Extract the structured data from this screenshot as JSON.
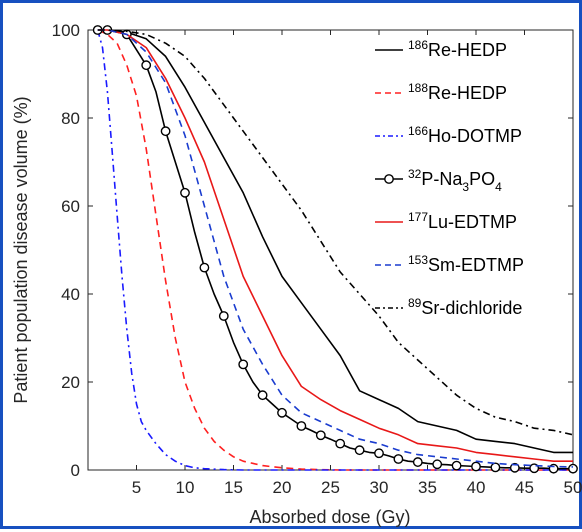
{
  "chart_data": {
    "type": "line",
    "title": "",
    "xlabel": "Absorbed dose (Gy)",
    "ylabel": "Patient population disease volume (%)",
    "xlim": [
      0,
      50
    ],
    "ylim": [
      0,
      100
    ],
    "xticks": [
      5,
      10,
      15,
      20,
      25,
      30,
      35,
      40,
      45,
      50
    ],
    "yticks": [
      0,
      20,
      40,
      60,
      80,
      100
    ],
    "grid": false,
    "legend_position": "top-right",
    "series": [
      {
        "name": "186Re-HEDP",
        "legend": {
          "sup": "186",
          "main": "Re-HEDP"
        },
        "color": "#000000",
        "dash": "solid",
        "marker": "none",
        "x": [
          1,
          2,
          4,
          6,
          8,
          10,
          12,
          14,
          16,
          18,
          20,
          22,
          24,
          26,
          28,
          30,
          32,
          34,
          36,
          38,
          40,
          42,
          44,
          46,
          48,
          50
        ],
        "y": [
          100,
          100,
          99.5,
          98,
          94,
          87,
          79,
          71,
          63,
          53,
          44,
          38,
          32,
          26,
          18,
          16,
          14,
          11,
          10,
          9,
          7,
          6.5,
          6,
          5,
          4,
          4
        ]
      },
      {
        "name": "188Re-HEDP",
        "legend": {
          "sup": "188",
          "main": "Re-HEDP"
        },
        "color": "#ff2020",
        "dash": "dashed",
        "marker": "none",
        "x": [
          1,
          2,
          3,
          4,
          5,
          6,
          7,
          8,
          9,
          10,
          11,
          12,
          13,
          14,
          15,
          16,
          18,
          20,
          22,
          24,
          26,
          50
        ],
        "y": [
          100,
          99,
          97,
          92,
          85,
          73,
          58,
          43,
          30,
          20,
          14,
          9.5,
          6.5,
          4.5,
          3,
          2,
          1,
          0.5,
          0.2,
          0.1,
          0,
          0
        ]
      },
      {
        "name": "166Ho-DOTMP",
        "legend": {
          "sup": "166",
          "main": "Ho-DOTMP"
        },
        "color": "#1a1aff",
        "dash": "dashdot",
        "marker": "none",
        "x": [
          1,
          1.5,
          2,
          2.5,
          3,
          3.5,
          4,
          4.5,
          5,
          5.5,
          6,
          7,
          8,
          9,
          10,
          11,
          12,
          14,
          16,
          20,
          50
        ],
        "y": [
          100,
          96,
          86,
          72,
          58,
          44,
          32,
          22,
          15,
          11,
          9,
          6,
          3.5,
          2,
          1,
          0.5,
          0.3,
          0.1,
          0,
          0,
          0
        ]
      },
      {
        "name": "32P-Na3PO4",
        "legend": {
          "sup": "32",
          "main": "P-Na",
          "sub": "3",
          "main2": "PO",
          "sub2": "4"
        },
        "color": "#000000",
        "dash": "solid",
        "marker": "circle",
        "x": [
          1,
          2,
          4,
          6,
          7,
          8,
          9,
          10,
          11,
          12,
          13,
          14,
          15,
          16,
          17,
          18,
          19,
          20,
          21,
          22,
          23,
          24,
          25,
          26,
          27,
          28,
          29,
          30,
          31,
          32,
          33,
          34,
          35,
          36,
          37,
          38,
          39,
          40,
          41,
          42,
          43,
          44,
          45,
          46,
          47,
          48,
          49,
          50
        ],
        "y": [
          100,
          100,
          99,
          92,
          86,
          77,
          70,
          63,
          54,
          46,
          40,
          35,
          29,
          24,
          20,
          17,
          15,
          13,
          11.5,
          10,
          9,
          7.9,
          7,
          6,
          5,
          4.5,
          4,
          3.8,
          3.2,
          2.5,
          2,
          1.8,
          1.5,
          1.3,
          1.2,
          1,
          0.9,
          0.8,
          0.7,
          0.6,
          0.5,
          0.5,
          0.4,
          0.4,
          0.4,
          0.3,
          0.3,
          0.3
        ],
        "marker_x": [
          1,
          2,
          4,
          6,
          8,
          10,
          12,
          14,
          16,
          18,
          20,
          22,
          24,
          26,
          28,
          30,
          32,
          34,
          36,
          38,
          40,
          42,
          44,
          46,
          48,
          50
        ]
      },
      {
        "name": "177Lu-EDTMP",
        "legend": {
          "sup": "177",
          "main": "Lu-EDTMP"
        },
        "color": "#e81818",
        "dash": "solid",
        "marker": "none",
        "x": [
          1,
          2,
          4,
          6,
          8,
          10,
          12,
          14,
          16,
          18,
          20,
          22,
          24,
          26,
          28,
          30,
          32,
          34,
          36,
          38,
          40,
          42,
          44,
          46,
          48,
          50
        ],
        "y": [
          100,
          100,
          99,
          96,
          89,
          80,
          70,
          57,
          44,
          35,
          26,
          19,
          16,
          13.5,
          11.5,
          9.5,
          8,
          6,
          5.5,
          5,
          4,
          3.5,
          3,
          2.5,
          2,
          2
        ]
      },
      {
        "name": "153Sm-EDTMP",
        "legend": {
          "sup": "153",
          "main": "Sm-EDTMP"
        },
        "color": "#1a3ccf",
        "dash": "dashed",
        "marker": "none",
        "x": [
          1,
          2,
          4,
          6,
          8,
          10,
          12,
          14,
          16,
          18,
          20,
          22,
          24,
          26,
          28,
          30,
          32,
          34,
          36,
          38,
          40,
          42,
          44,
          46,
          48,
          50
        ],
        "y": [
          100,
          100,
          99,
          95,
          88,
          76,
          60,
          44,
          32,
          24,
          17,
          13,
          11,
          9,
          7,
          6,
          4.5,
          3.5,
          3,
          2.5,
          2,
          1.5,
          1.2,
          1,
          0.8,
          0.7
        ]
      },
      {
        "name": "89Sr-dichloride",
        "legend": {
          "sup": "89",
          "main": "Sr-dichloride"
        },
        "color": "#000000",
        "dash": "dashdot",
        "marker": "none",
        "x": [
          1,
          2,
          4,
          6,
          8,
          10,
          12,
          14,
          16,
          18,
          20,
          22,
          24,
          26,
          28,
          30,
          32,
          34,
          36,
          38,
          40,
          42,
          44,
          46,
          48,
          50
        ],
        "y": [
          100,
          100,
          99.7,
          99,
          97,
          94,
          89,
          83,
          77,
          71,
          65,
          59,
          52,
          45,
          40,
          35,
          29,
          25,
          21,
          17,
          14,
          12,
          11,
          9.5,
          9,
          8
        ]
      }
    ]
  }
}
